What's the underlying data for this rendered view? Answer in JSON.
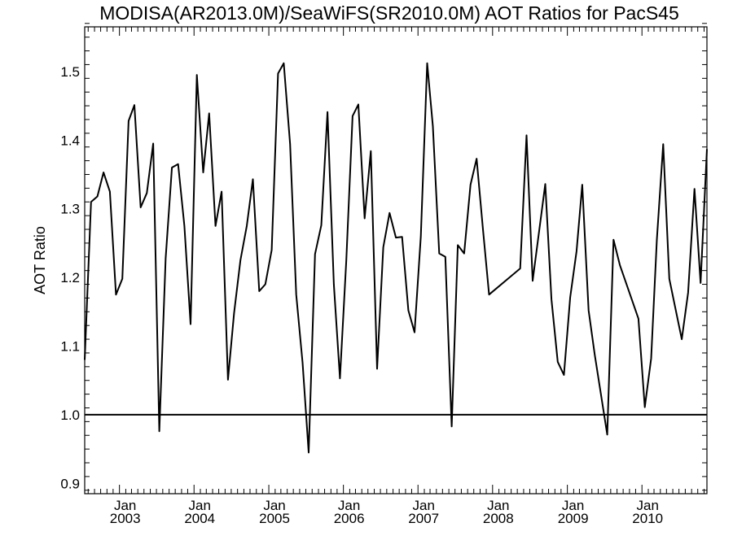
{
  "chart_data": {
    "type": "line",
    "title": "MODISA(AR2013.0M)/SeaWiFS(SR2010.0M)  AOT Ratios for PacS45",
    "xlabel": "",
    "ylabel": "AOT Ratio",
    "ylim": [
      0.885,
      1.565
    ],
    "xlim": [
      "2002-07-15",
      "2010-11-15"
    ],
    "yticks": [
      "0.9",
      "1.0",
      "1.1",
      "1.2",
      "1.3",
      "1.4",
      "1.5"
    ],
    "xticks": [
      {
        "month": "Jan",
        "year": "2003",
        "date": "2003-01-01"
      },
      {
        "month": "Jan",
        "year": "2004",
        "date": "2004-01-01"
      },
      {
        "month": "Jan",
        "year": "2005",
        "date": "2005-01-01"
      },
      {
        "month": "Jan",
        "year": "2006",
        "date": "2006-01-01"
      },
      {
        "month": "Jan",
        "year": "2007",
        "date": "2007-01-01"
      },
      {
        "month": "Jan",
        "year": "2008",
        "date": "2008-01-01"
      },
      {
        "month": "Jan",
        "year": "2009",
        "date": "2009-01-01"
      },
      {
        "month": "Jan",
        "year": "2010",
        "date": "2010-01-01"
      }
    ],
    "reference_line": 1.0,
    "grid": false,
    "series": [
      {
        "x": [
          "2002-07-15",
          "2002-08-15",
          "2002-09-15",
          "2002-10-15",
          "2002-11-15",
          "2002-12-15",
          "2003-01-15",
          "2003-02-15",
          "2003-03-15",
          "2003-04-15",
          "2003-05-15",
          "2003-06-15",
          "2003-07-15",
          "2003-08-15",
          "2003-09-15",
          "2003-10-15",
          "2003-11-15",
          "2003-12-15",
          "2004-01-15",
          "2004-02-15",
          "2004-03-15",
          "2004-04-15",
          "2004-05-15",
          "2004-06-15",
          "2004-07-15",
          "2004-08-15",
          "2004-09-15",
          "2004-10-15",
          "2004-11-15",
          "2004-12-15",
          "2005-01-15",
          "2005-02-15",
          "2005-03-15",
          "2005-04-15",
          "2005-05-15",
          "2005-06-15",
          "2005-07-15",
          "2005-08-15",
          "2005-09-15",
          "2005-10-15",
          "2005-11-15",
          "2005-12-15",
          "2006-01-15",
          "2006-02-15",
          "2006-03-15",
          "2006-04-15",
          "2006-05-15",
          "2006-06-15",
          "2006-07-15",
          "2006-08-15",
          "2006-09-15",
          "2006-10-15",
          "2006-11-15",
          "2006-12-15",
          "2007-01-15",
          "2007-02-15",
          "2007-03-15",
          "2007-04-15",
          "2007-05-15",
          "2007-06-15",
          "2007-07-15",
          "2007-08-15",
          "2007-09-15",
          "2007-10-15",
          "2007-11-15",
          "2007-12-15",
          "2008-05-15",
          "2008-06-15",
          "2008-07-15",
          "2008-09-15",
          "2008-10-15",
          "2008-11-15",
          "2008-12-15",
          "2009-01-15",
          "2009-02-15",
          "2009-03-15",
          "2009-04-15",
          "2009-05-15",
          "2009-07-15",
          "2009-08-15",
          "2009-09-15",
          "2009-12-15",
          "2010-01-15",
          "2010-02-15",
          "2010-03-15",
          "2010-04-15",
          "2010-05-15",
          "2010-07-15",
          "2010-08-15",
          "2010-09-15",
          "2010-10-15",
          "2010-11-15"
        ],
        "values": [
          1.08,
          1.31,
          1.318,
          1.353,
          1.325,
          1.175,
          1.198,
          1.428,
          1.451,
          1.302,
          1.323,
          1.395,
          0.976,
          1.228,
          1.36,
          1.365,
          1.275,
          1.132,
          1.495,
          1.353,
          1.439,
          1.275,
          1.325,
          1.051,
          1.148,
          1.225,
          1.275,
          1.343,
          1.18,
          1.19,
          1.24,
          1.497,
          1.512,
          1.394,
          1.175,
          1.076,
          0.945,
          1.234,
          1.276,
          1.441,
          1.19,
          1.053,
          1.225,
          1.435,
          1.452,
          1.286,
          1.384,
          1.067,
          1.244,
          1.294,
          1.258,
          1.259,
          1.152,
          1.12,
          1.26,
          1.512,
          1.42,
          1.235,
          1.23,
          0.983,
          1.247,
          1.235,
          1.335,
          1.373,
          1.27,
          1.175,
          1.213,
          1.407,
          1.195,
          1.336,
          1.168,
          1.077,
          1.058,
          1.171,
          1.238,
          1.335,
          1.152,
          1.087,
          0.971,
          1.255,
          1.218,
          1.14,
          1.011,
          1.082,
          1.255,
          1.394,
          1.198,
          1.11,
          1.178,
          1.329,
          1.192,
          1.387
        ]
      }
    ]
  }
}
